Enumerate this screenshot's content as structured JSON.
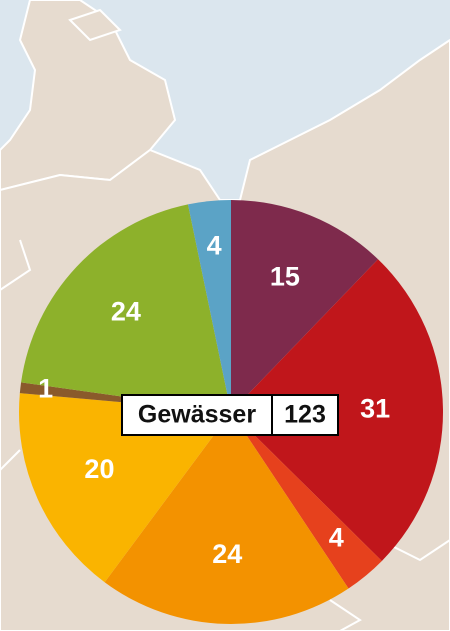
{
  "chart_data": {
    "type": "pie",
    "center_label": "Gewässer",
    "total": 123,
    "values": [
      15,
      31,
      4,
      24,
      20,
      1,
      24,
      4
    ],
    "colors": [
      "#7e2a4c",
      "#c0161b",
      "#e6411d",
      "#f39200",
      "#fab400",
      "#8a5a2b",
      "#8db12b",
      "#5ba3c6"
    ]
  }
}
